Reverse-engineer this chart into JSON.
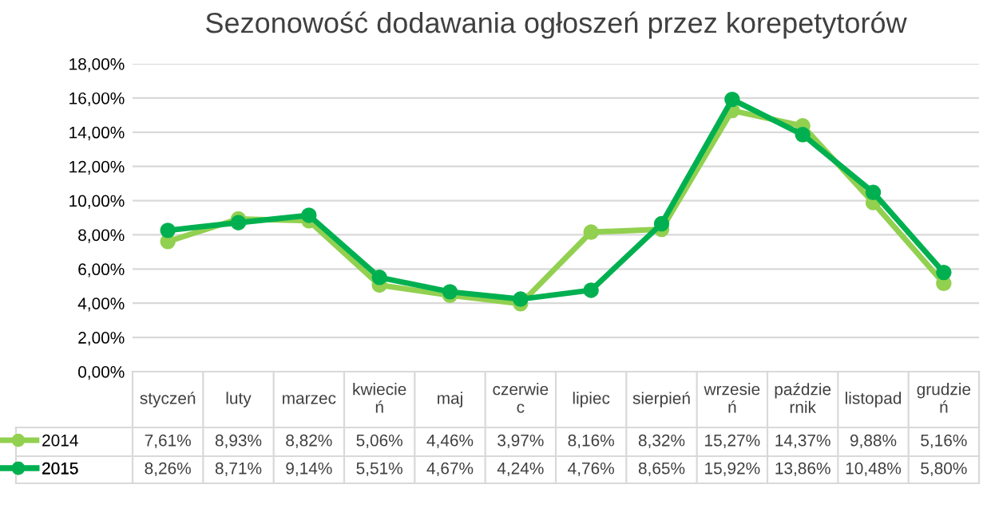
{
  "chart_data": {
    "type": "line",
    "title": "Sezonowość dodawania ogłoszeń przez korepetytorów",
    "categories": [
      "styczeń",
      "luty",
      "marzec",
      "kwiecie\nń",
      "maj",
      "czerwie\nc",
      "lipiec",
      "sierpień",
      "wrzesie\nń",
      "paździe\nrnik",
      "listopad",
      "grudzie\nń"
    ],
    "series": [
      {
        "name": "2014",
        "color": "#92d050",
        "values": [
          7.61,
          8.93,
          8.82,
          5.06,
          4.46,
          3.97,
          8.16,
          8.32,
          15.27,
          14.37,
          9.88,
          5.16
        ],
        "value_labels": [
          "7,61%",
          "8,93%",
          "8,82%",
          "5,06%",
          "4,46%",
          "3,97%",
          "8,16%",
          "8,32%",
          "15,27%",
          "14,37%",
          "9,88%",
          "5,16%"
        ]
      },
      {
        "name": "2015",
        "color": "#00b050",
        "values": [
          8.26,
          8.71,
          9.14,
          5.51,
          4.67,
          4.24,
          4.76,
          8.65,
          15.92,
          13.86,
          10.48,
          5.8
        ],
        "value_labels": [
          "8,26%",
          "8,71%",
          "9,14%",
          "5,51%",
          "4,67%",
          "4,24%",
          "4,76%",
          "8,65%",
          "15,92%",
          "13,86%",
          "10,48%",
          "5,80%"
        ]
      }
    ],
    "ylim": [
      0,
      18
    ],
    "yticks": [
      {
        "value": 0,
        "label": "0,00%"
      },
      {
        "value": 2,
        "label": "2,00%"
      },
      {
        "value": 4,
        "label": "4,00%"
      },
      {
        "value": 6,
        "label": "6,00%"
      },
      {
        "value": 8,
        "label": "8,00%"
      },
      {
        "value": 10,
        "label": "10,00%"
      },
      {
        "value": 12,
        "label": "12,00%"
      },
      {
        "value": 14,
        "label": "14,00%"
      },
      {
        "value": 16,
        "label": "16,00%"
      },
      {
        "value": 18,
        "label": "18,00%"
      }
    ],
    "grid": "y",
    "marker": "circle",
    "line_style": "solid",
    "legend": "bottom"
  }
}
